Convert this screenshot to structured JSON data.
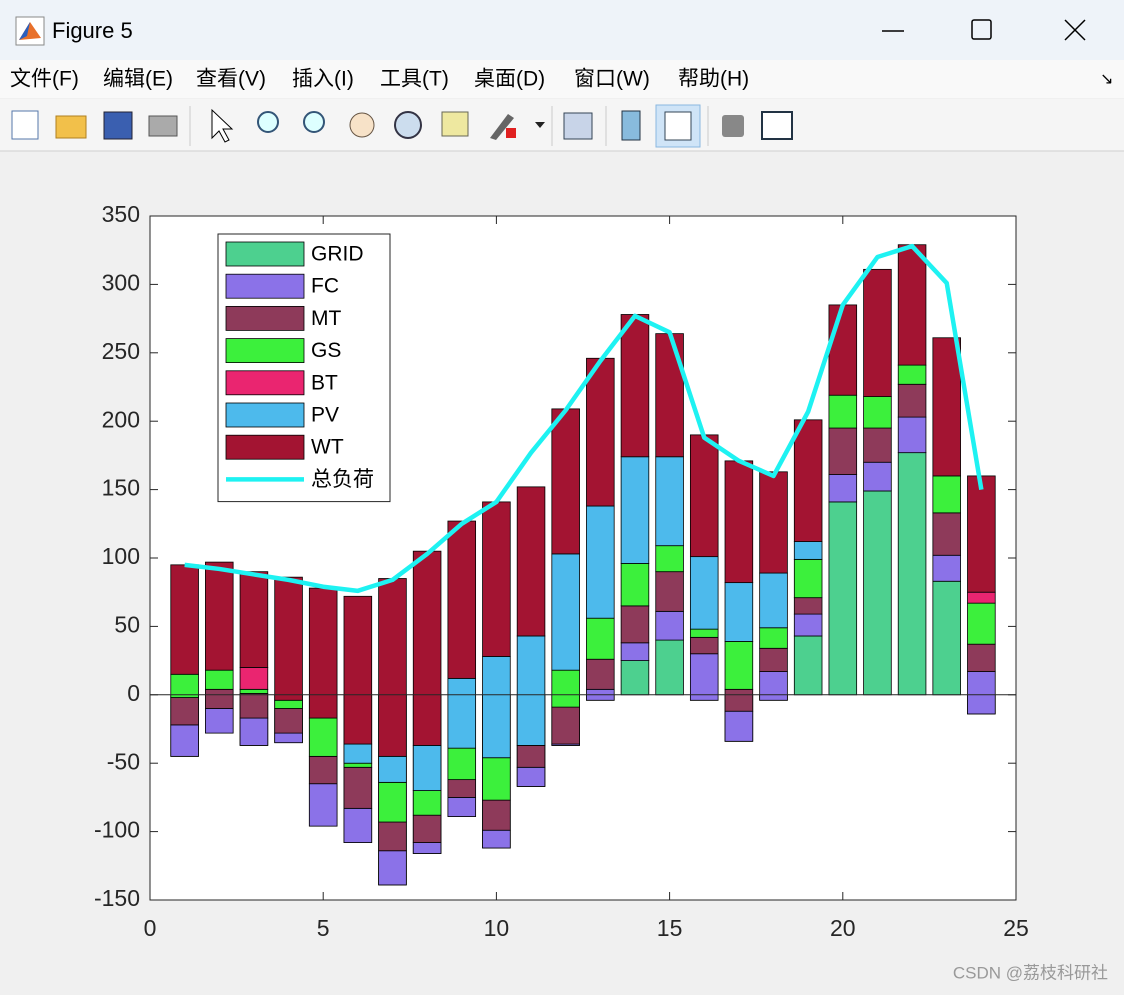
{
  "window": {
    "title": "Figure 5",
    "menus": [
      "文件(F)",
      "编辑(E)",
      "查看(V)",
      "插入(I)",
      "工具(T)",
      "桌面(D)",
      "窗口(W)",
      "帮助(H)"
    ]
  },
  "chart_data": {
    "type": "bar",
    "stacked": true,
    "x": [
      1,
      2,
      3,
      4,
      5,
      6,
      7,
      8,
      9,
      10,
      11,
      12,
      13,
      14,
      15,
      16,
      17,
      18,
      19,
      20,
      21,
      22,
      23,
      24
    ],
    "series": [
      {
        "name": "GRID",
        "color": "#4dd08f",
        "values": [
          -45,
          -28,
          -37,
          -35,
          -96,
          -108,
          -139,
          -116,
          -89,
          -112,
          -67,
          -37,
          -4,
          25,
          40,
          -4,
          -34,
          -4,
          43,
          141,
          149,
          177,
          83,
          -14
        ]
      },
      {
        "name": "FC",
        "color": "#8b72e8",
        "values": [
          23,
          18,
          20,
          7,
          31,
          25,
          25,
          8,
          14,
          13,
          14,
          1,
          8,
          13,
          21,
          34,
          22,
          21,
          16,
          20,
          21,
          26,
          19,
          31
        ]
      },
      {
        "name": "MT",
        "color": "#8e3a5a",
        "values": [
          20,
          14,
          18,
          18,
          20,
          30,
          21,
          20,
          13,
          22,
          16,
          27,
          22,
          27,
          29,
          12,
          16,
          17,
          12,
          34,
          25,
          24,
          31,
          20
        ]
      },
      {
        "name": "GS",
        "color": "#3cf03c",
        "values": [
          17,
          14,
          3,
          6,
          28,
          3,
          29,
          18,
          23,
          31,
          0,
          27,
          30,
          31,
          19,
          6,
          35,
          15,
          28,
          24,
          23,
          14,
          27,
          30
        ]
      },
      {
        "name": "BT",
        "color": "#ea2570",
        "values": [
          0,
          0,
          16,
          0,
          0,
          0,
          0,
          0,
          0,
          0,
          0,
          0,
          0,
          0,
          0,
          0,
          0,
          0,
          0,
          0,
          0,
          0,
          0,
          8
        ]
      },
      {
        "name": "PV",
        "color": "#4dbaec",
        "values": [
          0,
          0,
          0,
          0,
          0,
          14,
          19,
          33,
          51,
          74,
          80,
          85,
          82,
          78,
          65,
          53,
          43,
          40,
          13,
          0,
          0,
          0,
          0,
          0
        ]
      },
      {
        "name": "WT",
        "color": "#a31432",
        "values": [
          80,
          79,
          70,
          90,
          95,
          108,
          130,
          142,
          115,
          113,
          109,
          106,
          108,
          104,
          90,
          89,
          89,
          74,
          89,
          66,
          93,
          88,
          101,
          85
        ]
      }
    ],
    "line": {
      "name": "总负荷",
      "color": "#1ef2f2",
      "values": [
        95,
        92,
        88,
        84,
        79,
        76,
        84,
        103,
        125,
        141,
        177,
        208,
        244,
        277,
        265,
        188,
        171,
        160,
        207,
        285,
        320,
        328,
        301,
        150
      ]
    },
    "xlim": [
      0,
      25
    ],
    "xticks": [
      0,
      5,
      10,
      15,
      20,
      25
    ],
    "ylim": [
      -150,
      350
    ],
    "yticks": [
      -150,
      -100,
      -50,
      0,
      50,
      100,
      150,
      200,
      250,
      300,
      350
    ],
    "legend": "northwest",
    "grid": false
  },
  "watermark": "CSDN @荔枝科研社"
}
